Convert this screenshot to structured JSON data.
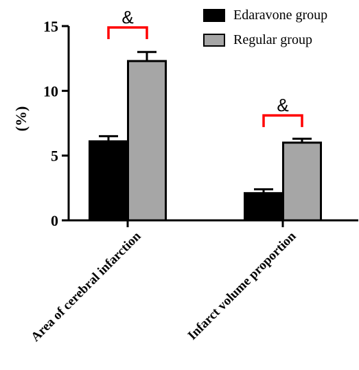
{
  "chart_data": {
    "type": "bar",
    "ylabel": "(%)",
    "ylim": [
      0,
      15
    ],
    "yticks": [
      0,
      5,
      10,
      15
    ],
    "categories": [
      "Area of cerebral infarction",
      "Infarct volume proportion"
    ],
    "series": [
      {
        "name": "Edaravone group",
        "color": "#000000",
        "values": [
          6.1,
          2.1
        ],
        "errors": [
          0.4,
          0.3
        ]
      },
      {
        "name": "Regular group",
        "color": "#a6a6a6",
        "values": [
          12.3,
          6.0
        ],
        "errors": [
          0.7,
          0.3
        ]
      }
    ],
    "significance": [
      {
        "category": 0,
        "label": "&",
        "color": "#ff0000"
      },
      {
        "category": 1,
        "label": "&",
        "color": "#ff0000"
      }
    ],
    "grid": false,
    "legend_position": "top-right"
  }
}
